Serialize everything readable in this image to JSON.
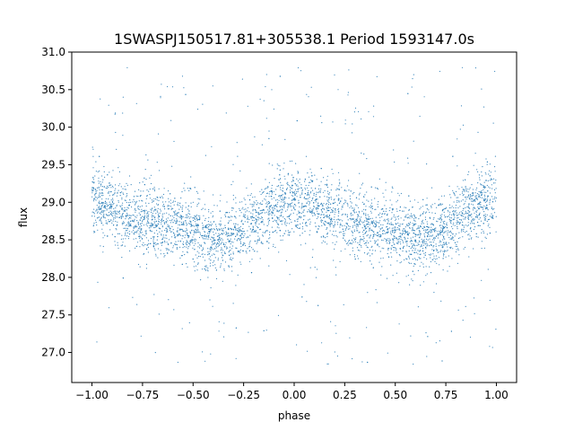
{
  "chart_data": {
    "type": "scatter",
    "title": "1SWASPJ150517.81+305538.1 Period 1593147.0s",
    "xlabel": "phase",
    "ylabel": "flux",
    "xlim": [
      -1.1,
      1.1
    ],
    "ylim": [
      26.6,
      31.0
    ],
    "xticks": [
      -1.0,
      -0.75,
      -0.5,
      -0.25,
      0.0,
      0.25,
      0.5,
      0.75,
      1.0
    ],
    "xtick_labels": [
      "−1.00",
      "−0.75",
      "−0.50",
      "−0.25",
      "0.00",
      "0.25",
      "0.50",
      "0.75",
      "1.00"
    ],
    "yticks": [
      27.0,
      27.5,
      28.0,
      28.5,
      29.0,
      29.5,
      30.0,
      30.5,
      31.0
    ],
    "ytick_labels": [
      "27.0",
      "27.5",
      "28.0",
      "28.5",
      "29.0",
      "29.5",
      "30.0",
      "30.5",
      "31.0"
    ],
    "grid": false,
    "legend": "none",
    "point_color": "#1f77b4",
    "series": [
      {
        "x_range": [
          -1.0,
          1.0
        ],
        "periodic_profile": {
          "phase": [
            0.0,
            0.1,
            0.2,
            0.3,
            0.4,
            0.5,
            0.6,
            0.7,
            0.8,
            0.9,
            1.0
          ],
          "flux": [
            29.0,
            28.95,
            28.8,
            28.75,
            28.7,
            28.6,
            28.5,
            28.55,
            28.75,
            28.95,
            29.0
          ]
        },
        "core_spread": [
          28.0,
          29.6
        ],
        "outlier_range": [
          26.8,
          30.8
        ]
      }
    ]
  }
}
